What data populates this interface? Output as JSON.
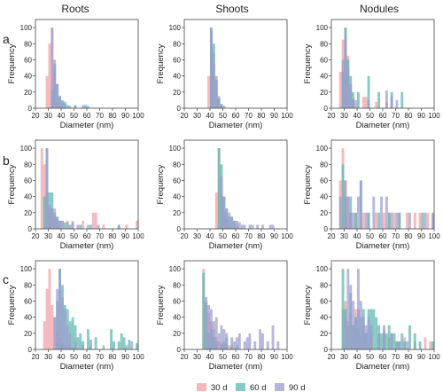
{
  "figure": {
    "column_titles": [
      "Roots",
      "Shoots",
      "Nodules"
    ],
    "row_labels": [
      "a",
      "b",
      "c"
    ],
    "xlabel": "Diameter (nm)",
    "ylabel": "Frequency",
    "legend": [
      {
        "label": "30 d",
        "color": "#f0a0a4"
      },
      {
        "label": "60 d",
        "color": "#5db5ad"
      },
      {
        "label": "90 d",
        "color": "#9c9ccf"
      }
    ]
  },
  "chart_data": [
    {
      "type": "bar",
      "title": "Roots",
      "panel": "a",
      "xlabel": "Diameter (nm)",
      "ylabel": "Frequency",
      "xlim": [
        20,
        100
      ],
      "ylim": [
        0,
        110
      ],
      "xticks": [
        20,
        30,
        40,
        50,
        60,
        70,
        80,
        90,
        100
      ],
      "yticks": [
        0,
        20,
        40,
        60,
        80,
        100
      ],
      "bin_width": 2,
      "series": [
        {
          "name": "30 d",
          "color": "#f0a0a4",
          "x": [
            28,
            30,
            32,
            34,
            36,
            38
          ],
          "values": [
            40,
            80,
            100,
            48,
            8,
            3
          ]
        },
        {
          "name": "60 d",
          "color": "#5db5ad",
          "x": [
            32,
            34,
            36,
            38,
            40,
            42,
            44,
            50,
            58
          ],
          "values": [
            22,
            55,
            30,
            15,
            10,
            8,
            4,
            3,
            4
          ]
        },
        {
          "name": "90 d",
          "color": "#9c9ccf",
          "x": [
            32,
            34,
            36,
            38,
            40,
            42,
            46,
            50,
            56,
            60
          ],
          "values": [
            100,
            60,
            30,
            15,
            8,
            5,
            3,
            4,
            4,
            3
          ]
        }
      ]
    },
    {
      "type": "bar",
      "title": "Shoots",
      "panel": "a",
      "xlabel": "Diameter (nm)",
      "ylabel": "Frequency",
      "xlim": [
        20,
        100
      ],
      "ylim": [
        0,
        110
      ],
      "xticks": [
        20,
        30,
        40,
        50,
        60,
        70,
        80,
        90,
        100
      ],
      "yticks": [
        0,
        20,
        40,
        60,
        80,
        100
      ],
      "bin_width": 2,
      "series": [
        {
          "name": "30 d",
          "color": "#f0a0a4",
          "x": [
            38,
            40,
            42,
            44,
            46
          ],
          "values": [
            40,
            95,
            68,
            35,
            10
          ]
        },
        {
          "name": "60 d",
          "color": "#5db5ad",
          "x": [
            40,
            42,
            44,
            46,
            48
          ],
          "values": [
            100,
            80,
            35,
            12,
            5
          ]
        },
        {
          "name": "90 d",
          "color": "#9c9ccf",
          "x": [
            40,
            42,
            44,
            46,
            48,
            50
          ],
          "values": [
            100,
            55,
            40,
            15,
            5,
            3
          ]
        }
      ]
    },
    {
      "type": "bar",
      "title": "Nodules",
      "panel": "a",
      "xlabel": "Diameter (nm)",
      "ylabel": "Frequency",
      "xlim": [
        20,
        100
      ],
      "ylim": [
        0,
        110
      ],
      "xticks": [
        20,
        30,
        40,
        50,
        60,
        70,
        80,
        90,
        100
      ],
      "yticks": [
        0,
        20,
        40,
        60,
        80,
        100
      ],
      "bin_width": 2,
      "series": [
        {
          "name": "30 d",
          "color": "#f0a0a4",
          "x": [
            26,
            28,
            30,
            32,
            34,
            36,
            44,
            46,
            54,
            62
          ],
          "values": [
            45,
            85,
            100,
            65,
            25,
            12,
            14,
            14,
            8,
            8
          ]
        },
        {
          "name": "60 d",
          "color": "#5db5ad",
          "x": [
            28,
            30,
            32,
            34,
            36,
            40,
            48,
            56,
            66,
            74
          ],
          "values": [
            45,
            100,
            60,
            40,
            20,
            20,
            40,
            20,
            20,
            20
          ]
        },
        {
          "name": "90 d",
          "color": "#9c9ccf",
          "x": [
            28,
            30,
            32,
            34,
            36,
            38,
            48,
            62,
            66,
            70
          ],
          "values": [
            60,
            90,
            50,
            30,
            12,
            10,
            10,
            22,
            15,
            10
          ]
        }
      ]
    },
    {
      "type": "bar",
      "title": "Roots",
      "panel": "b",
      "xlabel": "Diameter (nm)",
      "ylabel": "Frequency",
      "xlim": [
        20,
        100
      ],
      "ylim": [
        0,
        110
      ],
      "xticks": [
        20,
        30,
        40,
        50,
        60,
        70,
        80,
        90,
        100
      ],
      "yticks": [
        0,
        20,
        40,
        60,
        80,
        100
      ],
      "bin_width": 2,
      "series": [
        {
          "name": "30 d",
          "color": "#f0a0a4",
          "x": [
            24,
            26,
            28,
            30,
            32,
            34,
            36,
            40,
            44,
            48,
            56,
            64,
            66,
            72,
            84,
            90,
            98
          ],
          "values": [
            100,
            80,
            45,
            25,
            25,
            15,
            10,
            10,
            10,
            10,
            10,
            20,
            20,
            5,
            5,
            5,
            10
          ]
        },
        {
          "name": "60 d",
          "color": "#5db5ad",
          "x": [
            26,
            28,
            30,
            32,
            34,
            36,
            38,
            42,
            46,
            54,
            62,
            84
          ],
          "values": [
            40,
            100,
            45,
            45,
            20,
            15,
            10,
            8,
            5,
            5,
            5,
            5
          ]
        },
        {
          "name": "90 d",
          "color": "#9c9ccf",
          "x": [
            28,
            30,
            32,
            34,
            36,
            38,
            40,
            44,
            48,
            52,
            60,
            68
          ],
          "values": [
            100,
            30,
            25,
            25,
            15,
            10,
            10,
            8,
            8,
            5,
            5,
            5
          ]
        }
      ]
    },
    {
      "type": "bar",
      "title": "Shoots",
      "panel": "b",
      "xlabel": "Diameter (nm)",
      "ylabel": "Frequency",
      "xlim": [
        20,
        100
      ],
      "ylim": [
        0,
        110
      ],
      "xticks": [
        20,
        30,
        40,
        50,
        60,
        70,
        80,
        90,
        100
      ],
      "yticks": [
        0,
        20,
        40,
        60,
        80,
        100
      ],
      "bin_width": 2,
      "series": [
        {
          "name": "30 d",
          "color": "#f0a0a4",
          "x": [
            44,
            46,
            48,
            50,
            52,
            54
          ],
          "values": [
            45,
            100,
            45,
            20,
            15,
            5
          ]
        },
        {
          "name": "60 d",
          "color": "#5db5ad",
          "x": [
            46,
            48,
            50,
            52,
            54,
            56,
            58,
            60
          ],
          "values": [
            100,
            80,
            40,
            25,
            15,
            15,
            10,
            5
          ]
        },
        {
          "name": "90 d",
          "color": "#9c9ccf",
          "x": [
            48,
            50,
            52,
            54,
            56,
            58,
            60,
            62,
            64,
            66,
            70,
            72,
            76,
            80,
            86,
            88
          ],
          "values": [
            65,
            40,
            25,
            20,
            15,
            10,
            10,
            8,
            5,
            5,
            5,
            5,
            5,
            5,
            5,
            5
          ]
        }
      ]
    },
    {
      "type": "bar",
      "title": "Nodules",
      "panel": "b",
      "xlabel": "Diameter (nm)",
      "ylabel": "Frequency",
      "xlim": [
        20,
        100
      ],
      "ylim": [
        0,
        110
      ],
      "xticks": [
        20,
        30,
        40,
        50,
        60,
        70,
        80,
        90,
        100
      ],
      "yticks": [
        0,
        20,
        40,
        60,
        80,
        100
      ],
      "bin_width": 2,
      "series": [
        {
          "name": "30 d",
          "color": "#f0a0a4",
          "x": [
            26,
            28,
            30,
            32,
            34,
            38,
            44,
            48,
            54,
            60,
            64,
            68,
            72,
            78,
            84,
            88,
            94,
            98
          ],
          "values": [
            60,
            100,
            60,
            40,
            20,
            20,
            20,
            20,
            20,
            20,
            20,
            20,
            20,
            20,
            20,
            20,
            20,
            20
          ]
        },
        {
          "name": "60 d",
          "color": "#5db5ad",
          "x": [
            28,
            30,
            34,
            38,
            42,
            48,
            56,
            64,
            72,
            90
          ],
          "values": [
            80,
            40,
            40,
            20,
            60,
            20,
            20,
            20,
            20,
            20
          ]
        },
        {
          "name": "90 d",
          "color": "#9c9ccf",
          "x": [
            26,
            30,
            32,
            34,
            36,
            40,
            42,
            46,
            52,
            58,
            62,
            66,
            70,
            80,
            92,
            98
          ],
          "values": [
            40,
            60,
            40,
            20,
            20,
            40,
            60,
            20,
            40,
            40,
            40,
            20,
            20,
            20,
            20,
            20
          ]
        }
      ]
    },
    {
      "type": "bar",
      "title": "Roots",
      "panel": "c",
      "xlabel": "Diameter (nm)",
      "ylabel": "Frequency",
      "xlim": [
        20,
        100
      ],
      "ylim": [
        0,
        110
      ],
      "xticks": [
        20,
        30,
        40,
        50,
        60,
        70,
        80,
        90,
        100
      ],
      "yticks": [
        0,
        20,
        40,
        60,
        80,
        100
      ],
      "bin_width": 2,
      "series": [
        {
          "name": "30 d",
          "color": "#f0a0a4",
          "x": [
            26,
            28,
            30,
            32,
            34,
            36,
            38,
            40,
            42,
            44,
            46,
            48
          ],
          "values": [
            35,
            75,
            100,
            55,
            40,
            20,
            15,
            8,
            5,
            3,
            3,
            2
          ]
        },
        {
          "name": "60 d",
          "color": "#5db5ad",
          "x": [
            36,
            38,
            40,
            42,
            44,
            46,
            48,
            50,
            52,
            54,
            56,
            60,
            62,
            66,
            78,
            80,
            84,
            86,
            88,
            92,
            98
          ],
          "values": [
            60,
            100,
            80,
            55,
            50,
            35,
            40,
            30,
            15,
            20,
            10,
            25,
            12,
            15,
            25,
            10,
            10,
            20,
            15,
            12,
            8
          ]
        },
        {
          "name": "90 d",
          "color": "#9c9ccf",
          "x": [
            34,
            36,
            38,
            40,
            42,
            44,
            46,
            50,
            56,
            62,
            72,
            90,
            94
          ],
          "values": [
            40,
            75,
            100,
            65,
            50,
            30,
            20,
            10,
            5,
            5,
            5,
            5,
            10
          ]
        }
      ]
    },
    {
      "type": "bar",
      "title": "Shoots",
      "panel": "c",
      "xlabel": "Diameter (nm)",
      "ylabel": "Frequency",
      "xlim": [
        20,
        100
      ],
      "ylim": [
        0,
        110
      ],
      "xticks": [
        20,
        30,
        40,
        50,
        60,
        70,
        80,
        90,
        100
      ],
      "yticks": [
        0,
        20,
        40,
        60,
        80,
        100
      ],
      "bin_width": 2,
      "series": [
        {
          "name": "30 d",
          "color": "#f0a0a4",
          "x": [
            34,
            36,
            38,
            40,
            42,
            44,
            46,
            48,
            50,
            52,
            54,
            56
          ],
          "values": [
            100,
            55,
            45,
            35,
            25,
            15,
            10,
            8,
            5,
            5,
            5,
            2
          ]
        },
        {
          "name": "60 d",
          "color": "#5db5ad",
          "x": [
            34,
            36,
            38,
            40,
            42,
            44,
            48,
            50,
            52,
            56,
            60
          ],
          "values": [
            95,
            60,
            20,
            25,
            15,
            10,
            5,
            10,
            15,
            5,
            5
          ]
        },
        {
          "name": "90 d",
          "color": "#9c9ccf",
          "x": [
            36,
            38,
            40,
            42,
            44,
            46,
            48,
            50,
            52,
            56,
            58,
            60,
            62,
            66,
            68,
            70,
            74,
            78,
            80,
            84,
            88,
            92
          ],
          "values": [
            65,
            55,
            50,
            35,
            40,
            20,
            30,
            25,
            20,
            15,
            10,
            15,
            20,
            10,
            15,
            20,
            10,
            25,
            20,
            10,
            30,
            10
          ]
        }
      ]
    },
    {
      "type": "bar",
      "title": "Nodules",
      "panel": "c",
      "xlabel": "Diameter (nm)",
      "ylabel": "Frequency",
      "xlim": [
        20,
        100
      ],
      "ylim": [
        0,
        110
      ],
      "xticks": [
        20,
        30,
        40,
        50,
        60,
        70,
        80,
        90,
        100
      ],
      "yticks": [
        0,
        20,
        40,
        60,
        80,
        100
      ],
      "bin_width": 2,
      "series": [
        {
          "name": "30 d",
          "color": "#f0a0a4",
          "x": [
            28,
            30,
            32,
            34,
            36,
            38,
            40,
            42,
            44,
            46,
            50,
            56,
            60,
            64,
            70,
            76,
            84,
            92,
            96
          ],
          "values": [
            50,
            60,
            35,
            45,
            30,
            50,
            25,
            15,
            30,
            20,
            20,
            15,
            25,
            15,
            10,
            15,
            10,
            15,
            10
          ]
        },
        {
          "name": "60 d",
          "color": "#5db5ad",
          "x": [
            28,
            30,
            32,
            34,
            36,
            38,
            40,
            42,
            44,
            46,
            48,
            50,
            52,
            54,
            56,
            58,
            60,
            62,
            64,
            66,
            68,
            70,
            72,
            74,
            76,
            80,
            84,
            88,
            98
          ],
          "values": [
            100,
            50,
            30,
            70,
            30,
            40,
            50,
            40,
            50,
            20,
            50,
            50,
            50,
            40,
            30,
            20,
            20,
            20,
            30,
            20,
            20,
            10,
            10,
            20,
            10,
            30,
            20,
            10,
            10
          ]
        },
        {
          "name": "90 d",
          "color": "#9c9ccf",
          "x": [
            30,
            32,
            34,
            36,
            38,
            40,
            42,
            44,
            46,
            48,
            50,
            56,
            60,
            66,
            72,
            78
          ],
          "values": [
            40,
            100,
            80,
            60,
            40,
            100,
            60,
            40,
            30,
            40,
            30,
            20,
            30,
            20,
            10,
            10
          ]
        }
      ]
    }
  ]
}
